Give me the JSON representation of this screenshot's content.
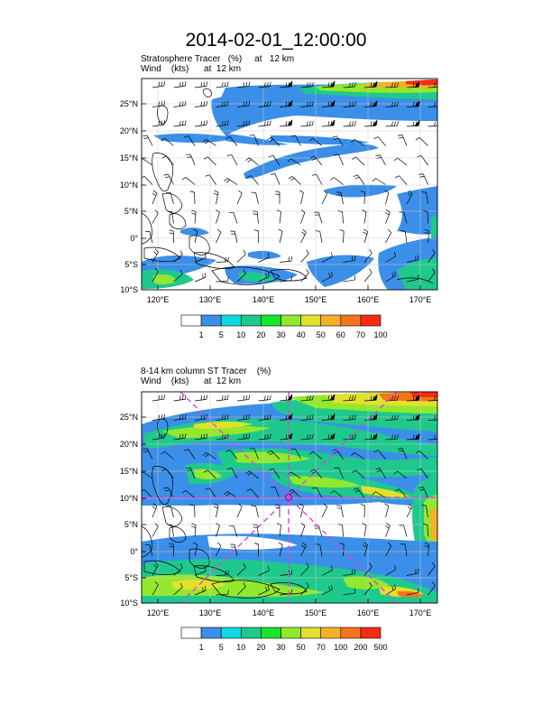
{
  "title": "2014-02-01_12:00:00",
  "colors": {
    "scale": [
      "#ffffff",
      "#3b8fe8",
      "#11d8e0",
      "#1fc98d",
      "#19e52b",
      "#93e82e",
      "#e3e02b",
      "#f5b025",
      "#f5741c",
      "#f52b15"
    ],
    "guide": "#e040e0"
  },
  "map": {
    "lon_ticks": [
      "120°E",
      "130°E",
      "140°E",
      "150°E",
      "160°E",
      "170°E"
    ],
    "lat_ticks": [
      "25°N",
      "20°N",
      "15°N",
      "10°N",
      "5°N",
      "0°",
      "5°S",
      "10°S"
    ]
  },
  "panels": [
    {
      "line1": "Stratosphere Tracer   (%)     at   12 km",
      "line2": "Wind    (kts)      at  12 km",
      "colorbar_labels": [
        "1",
        "5",
        "10",
        "20",
        "30",
        "40",
        "50",
        "60",
        "70",
        "100"
      ]
    },
    {
      "line1": "8-14 km column ST Tracer    (%)",
      "line2": "Wind    (kts)      at  12 km",
      "colorbar_labels": [
        "1",
        "5",
        "10",
        "20",
        "30",
        "50",
        "70",
        "100",
        "200",
        "500"
      ]
    }
  ]
}
